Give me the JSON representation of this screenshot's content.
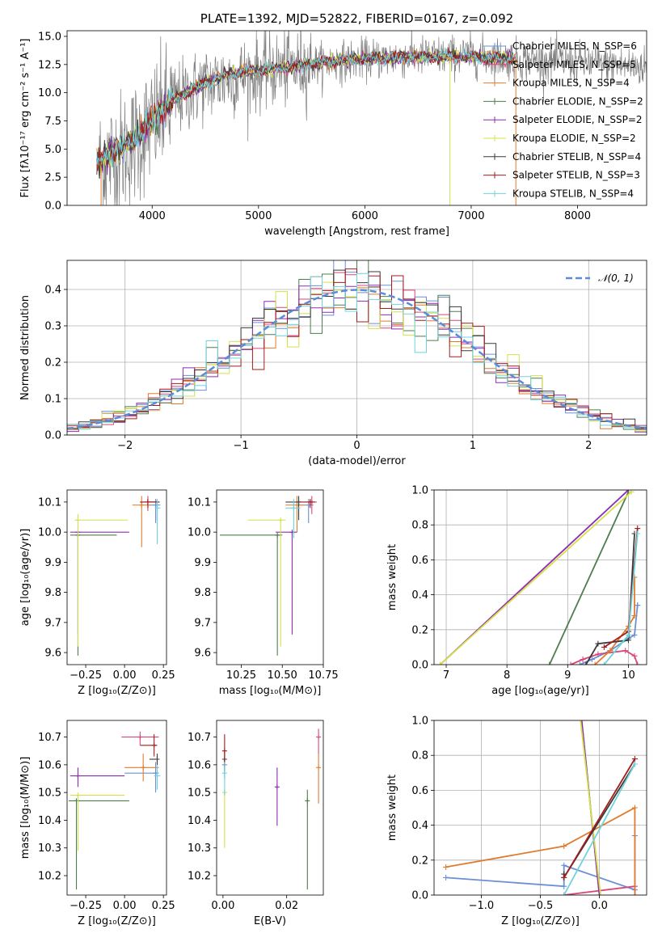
{
  "colors": {
    "chabrier_miles": "#6a8fd8",
    "salpeter_miles": "#d9477a",
    "kroupa_miles": "#e07b2e",
    "chabrier_elodie": "#4e7d4e",
    "salpeter_elodie": "#8e2bb5",
    "kroupa_elodie": "#d4e04a",
    "chabrier_stelib": "#3a3a3a",
    "salpeter_stelib": "#a51c1c",
    "kroupa_stelib": "#6fd3dc",
    "data": "#808080",
    "normal": "#5b8bd9"
  },
  "chart_data": [
    {
      "id": "spectrum",
      "type": "line",
      "title": "PLATE=1392, MJD=52822, FIBERID=0167, z=0.092",
      "xlabel": "wavelength [Angstrom, rest frame]",
      "ylabel": "Flux [fλ10⁻¹⁷ erg cm⁻² s⁻¹ A⁻¹]",
      "xlim": [
        3200,
        8650
      ],
      "ylim": [
        0,
        15.5
      ],
      "xticks": [
        "4000",
        "5000",
        "6000",
        "7000",
        "8000"
      ],
      "yticks": [
        "0.0",
        "2.5",
        "5.0",
        "7.5",
        "10.0",
        "12.5",
        "15.0"
      ],
      "legend": [
        "Chabrier MILES, N_SSP=6",
        "Salpeter MILES, N_SSP=5",
        "Kroupa MILES, N_SSP=4",
        "Chabrier ELODIE, N_SSP=2",
        "Salpeter ELODIE, N_SSP=2",
        "Kroupa ELODIE, N_SSP=2",
        "Chabrier STELIB, N_SSP=4",
        "Salpeter STELIB, N_SSP=3",
        "Kroupa STELIB, N_SSP=4"
      ],
      "legend_position": "right",
      "data_range": [
        3500,
        8650
      ],
      "model_points": [
        [
          3500,
          3.7
        ],
        [
          3600,
          4.8
        ],
        [
          3700,
          5.2
        ],
        [
          3800,
          5.5
        ],
        [
          3900,
          6.5
        ],
        [
          4000,
          7.6
        ],
        [
          4100,
          8.7
        ],
        [
          4200,
          9.4
        ],
        [
          4300,
          9.9
        ],
        [
          4500,
          10.9
        ],
        [
          4700,
          11.6
        ],
        [
          5000,
          12.0
        ],
        [
          5300,
          12.3
        ],
        [
          5600,
          12.7
        ],
        [
          6000,
          13.0
        ],
        [
          6500,
          13.2
        ],
        [
          7000,
          13.2
        ],
        [
          7400,
          13.0
        ]
      ],
      "data_points": [
        [
          3500,
          3.5
        ],
        [
          3800,
          5.2
        ],
        [
          4000,
          7.2
        ],
        [
          4200,
          9.2
        ],
        [
          4500,
          10.8
        ],
        [
          5000,
          11.8
        ],
        [
          5500,
          12.5
        ],
        [
          6000,
          13.0
        ],
        [
          6500,
          13.2
        ],
        [
          7000,
          13.3
        ],
        [
          7500,
          12.9
        ],
        [
          8000,
          12.7
        ],
        [
          8400,
          12.4
        ],
        [
          8650,
          12.3
        ]
      ],
      "grid": false
    },
    {
      "id": "residuals",
      "type": "area",
      "xlabel": "(data-model)/error",
      "ylabel": "Normed distribution",
      "xlim": [
        -2.5,
        2.5
      ],
      "ylim": [
        0,
        0.48
      ],
      "xticks": [
        "−2",
        "−1",
        "0",
        "1",
        "2"
      ],
      "yticks": [
        "0.0",
        "0.1",
        "0.2",
        "0.3",
        "0.4"
      ],
      "legend": [
        "𝒩(0, 1)"
      ],
      "legend_position": "top-right",
      "bin_width": 0.1,
      "grid": true
    },
    {
      "id": "age_vs_Z",
      "type": "scatter",
      "xlabel": "Z [log₁₀(Z/Z⊙)]",
      "ylabel": "age  [log₁₀(age/yr)]",
      "xlim": [
        -0.37,
        0.27
      ],
      "ylim": [
        9.56,
        10.14
      ],
      "xticks": [
        "−0.25",
        "0.00",
        "0.25"
      ],
      "yticks": [
        "9.6",
        "9.7",
        "9.8",
        "9.9",
        "10.0",
        "10.1"
      ],
      "points": [
        {
          "s": "chabrier_miles",
          "x": 0.2,
          "y": 10.09,
          "xerr": [
            0.05,
            0.03
          ],
          "yerr": [
            0.06,
            0.02
          ]
        },
        {
          "s": "salpeter_miles",
          "x": 0.15,
          "y": 10.1,
          "xerr": [
            0.05,
            0.05
          ],
          "yerr": [
            0.03,
            0.02
          ]
        },
        {
          "s": "kroupa_miles",
          "x": 0.11,
          "y": 10.09,
          "xerr": [
            0.06,
            0.06
          ],
          "yerr": [
            0.14,
            0.03
          ]
        },
        {
          "s": "chabrier_elodie",
          "x": -0.3,
          "y": 9.99,
          "xerr": [
            0.05,
            0.25
          ],
          "yerr": [
            0.4,
            0.0
          ]
        },
        {
          "s": "salpeter_elodie",
          "x": -0.3,
          "y": 10.0,
          "xerr": [
            0.05,
            0.33
          ],
          "yerr": [
            0.34,
            0.0
          ]
        },
        {
          "s": "kroupa_elodie",
          "x": -0.3,
          "y": 10.04,
          "xerr": [
            0.02,
            0.32
          ],
          "yerr": [
            0.42,
            0.02
          ]
        },
        {
          "s": "chabrier_stelib",
          "x": 0.21,
          "y": 10.1,
          "xerr": [
            0.06,
            0.0
          ],
          "yerr": [
            0.06,
            0.01
          ]
        },
        {
          "s": "salpeter_stelib",
          "x": 0.15,
          "y": 10.1,
          "xerr": [
            0.05,
            0.07
          ],
          "yerr": [
            0.02,
            0.01
          ]
        },
        {
          "s": "kroupa_stelib",
          "x": 0.21,
          "y": 10.08,
          "xerr": [
            0.0,
            0.02
          ],
          "yerr": [
            0.12,
            0.03
          ]
        }
      ]
    },
    {
      "id": "age_vs_mass",
      "type": "scatter",
      "xlabel": "mass [log₁₀(M/M⊙)]",
      "ylabel": "",
      "xlim": [
        10.1,
        10.75
      ],
      "ylim": [
        9.56,
        10.14
      ],
      "xticks": [
        "10.25",
        "10.50",
        "10.75"
      ],
      "yticks": [
        "9.6",
        "9.7",
        "9.8",
        "9.9",
        "10.0",
        "10.1"
      ],
      "points": [
        {
          "s": "chabrier_miles",
          "x": 10.66,
          "y": 10.09,
          "xerr": [
            0.06,
            0.03
          ],
          "yerr": [
            0.06,
            0.02
          ]
        },
        {
          "s": "salpeter_miles",
          "x": 10.68,
          "y": 10.1,
          "xerr": [
            0.05,
            0.03
          ],
          "yerr": [
            0.04,
            0.02
          ]
        },
        {
          "s": "kroupa_miles",
          "x": 10.59,
          "y": 10.09,
          "xerr": [
            0.07,
            0.05
          ],
          "yerr": [
            0.09,
            0.03
          ]
        },
        {
          "s": "chabrier_elodie",
          "x": 10.47,
          "y": 9.99,
          "xerr": [
            0.35,
            0.03
          ],
          "yerr": [
            0.4,
            0.0
          ]
        },
        {
          "s": "salpeter_elodie",
          "x": 10.56,
          "y": 10.0,
          "xerr": [
            0.1,
            0.03
          ],
          "yerr": [
            0.34,
            0.0
          ]
        },
        {
          "s": "kroupa_elodie",
          "x": 10.49,
          "y": 10.04,
          "xerr": [
            0.2,
            0.03
          ],
          "yerr": [
            0.42,
            0.0
          ]
        },
        {
          "s": "chabrier_stelib",
          "x": 10.6,
          "y": 10.1,
          "xerr": [
            0.08,
            0.02
          ],
          "yerr": [
            0.06,
            0.02
          ]
        },
        {
          "s": "salpeter_stelib",
          "x": 10.67,
          "y": 10.1,
          "xerr": [
            0.06,
            0.03
          ],
          "yerr": [
            0.02,
            0.01
          ]
        },
        {
          "s": "kroupa_stelib",
          "x": 10.57,
          "y": 10.08,
          "xerr": [
            0.05,
            0.04
          ],
          "yerr": [
            0.1,
            0.03
          ]
        }
      ]
    },
    {
      "id": "weight_vs_age",
      "type": "line",
      "xlabel": "age  [log₁₀(age/yr)]",
      "ylabel": "mass weight",
      "xlim": [
        6.8,
        10.3
      ],
      "ylim": [
        0,
        1.0
      ],
      "xticks": [
        "7",
        "8",
        "9",
        "10"
      ],
      "yticks": [
        "0.0",
        "0.2",
        "0.4",
        "0.6",
        "0.8",
        "1.0"
      ],
      "grid": true,
      "series": [
        {
          "s": "chabrier_miles",
          "x": [
            9.2,
            9.4,
            9.7,
            10.0,
            10.1,
            10.15,
            10.15
          ],
          "y": [
            0.0,
            0.03,
            0.08,
            0.15,
            0.17,
            0.34,
            0.34
          ]
        },
        {
          "s": "salpeter_miles",
          "x": [
            9.05,
            9.25,
            9.5,
            9.95,
            10.1,
            10.15
          ],
          "y": [
            0.0,
            0.03,
            0.06,
            0.08,
            0.05,
            0.0
          ]
        },
        {
          "s": "kroupa_miles",
          "x": [
            9.45,
            9.7,
            10.0,
            10.1,
            10.1
          ],
          "y": [
            0.0,
            0.08,
            0.22,
            0.28,
            0.5
          ]
        },
        {
          "s": "chabrier_elodie",
          "x": [
            8.7,
            10.0
          ],
          "y": [
            0.0,
            0.99
          ]
        },
        {
          "s": "salpeter_elodie",
          "x": [
            6.9,
            10.0
          ],
          "y": [
            0.0,
            1.0
          ]
        },
        {
          "s": "kroupa_elodie",
          "x": [
            6.9,
            10.05
          ],
          "y": [
            0.0,
            0.99
          ]
        },
        {
          "s": "chabrier_stelib",
          "x": [
            9.3,
            9.5,
            10.0,
            10.1
          ],
          "y": [
            0.0,
            0.12,
            0.14,
            0.75
          ]
        },
        {
          "s": "salpeter_stelib",
          "x": [
            9.6,
            10.0,
            10.15
          ],
          "y": [
            0.1,
            0.19,
            0.78
          ]
        },
        {
          "s": "kroupa_stelib",
          "x": [
            9.6,
            10.0,
            10.15
          ],
          "y": [
            0.0,
            0.17,
            0.75
          ]
        }
      ]
    },
    {
      "id": "mass_vs_Z",
      "type": "scatter",
      "xlabel": "Z [log₁₀(Z/Z⊙)]",
      "ylabel": "mass [log₁₀(M/M⊙)]",
      "xlim": [
        -0.37,
        0.27
      ],
      "ylim": [
        10.13,
        10.76
      ],
      "xticks": [
        "−0.25",
        "0.00",
        "0.25"
      ],
      "yticks": [
        "10.2",
        "10.3",
        "10.4",
        "10.5",
        "10.6",
        "10.7"
      ],
      "points": [
        {
          "s": "chabrier_miles",
          "x": 0.2,
          "y": 10.57,
          "xerr": [
            0.2,
            0.02
          ],
          "yerr": [
            0.07,
            0.04
          ]
        },
        {
          "s": "salpeter_miles",
          "x": 0.1,
          "y": 10.7,
          "xerr": [
            0.12,
            0.12
          ],
          "yerr": [
            0.03,
            0.02
          ]
        },
        {
          "s": "kroupa_miles",
          "x": 0.12,
          "y": 10.59,
          "xerr": [
            0.12,
            0.1
          ],
          "yerr": [
            0.05,
            0.05
          ]
        },
        {
          "s": "chabrier_elodie",
          "x": -0.31,
          "y": 10.47,
          "xerr": [
            0.05,
            0.34
          ],
          "yerr": [
            0.32,
            0.0
          ]
        },
        {
          "s": "salpeter_elodie",
          "x": -0.3,
          "y": 10.56,
          "xerr": [
            0.05,
            0.3
          ],
          "yerr": [
            0.04,
            0.03
          ]
        },
        {
          "s": "kroupa_elodie",
          "x": -0.3,
          "y": 10.49,
          "xerr": [
            0.05,
            0.3
          ],
          "yerr": [
            0.2,
            0.01
          ]
        },
        {
          "s": "chabrier_stelib",
          "x": 0.21,
          "y": 10.62,
          "xerr": [
            0.05,
            0.0
          ],
          "yerr": [
            0.05,
            0.02
          ]
        },
        {
          "s": "salpeter_stelib",
          "x": 0.19,
          "y": 10.67,
          "xerr": [
            0.09,
            0.02
          ],
          "yerr": [
            0.04,
            0.04
          ]
        },
        {
          "s": "kroupa_stelib",
          "x": 0.21,
          "y": 10.56,
          "xerr": [
            0.02,
            0.02
          ],
          "yerr": [
            0.05,
            0.04
          ]
        }
      ]
    },
    {
      "id": "mass_vs_ebv",
      "type": "scatter",
      "xlabel": "E(B-V)",
      "ylabel": "",
      "xlim": [
        -0.002,
        0.0315
      ],
      "ylim": [
        10.13,
        10.76
      ],
      "xticks": [
        "0.00",
        "0.02"
      ],
      "yticks": [
        "10.2",
        "10.3",
        "10.4",
        "10.5",
        "10.6",
        "10.7"
      ],
      "points": [
        {
          "s": "chabrier_miles",
          "x": 0.0005,
          "y": 10.6,
          "yerr": [
            0.05,
            0.03
          ]
        },
        {
          "s": "salpeter_miles",
          "x": 0.03,
          "y": 10.7,
          "yerr": [
            0.06,
            0.03
          ]
        },
        {
          "s": "kroupa_miles",
          "x": 0.03,
          "y": 10.59,
          "yerr": [
            0.13,
            0.05
          ]
        },
        {
          "s": "chabrier_elodie",
          "x": 0.0265,
          "y": 10.47,
          "yerr": [
            0.32,
            0.04
          ]
        },
        {
          "s": "salpeter_elodie",
          "x": 0.017,
          "y": 10.52,
          "yerr": [
            0.14,
            0.07
          ]
        },
        {
          "s": "kroupa_elodie",
          "x": 0.0005,
          "y": 10.5,
          "yerr": [
            0.2,
            0.01
          ]
        },
        {
          "s": "chabrier_stelib",
          "x": 0.0005,
          "y": 10.62,
          "yerr": [
            0.05,
            0.03
          ]
        },
        {
          "s": "salpeter_stelib",
          "x": 0.0005,
          "y": 10.65,
          "yerr": [
            0.06,
            0.06
          ]
        },
        {
          "s": "kroupa_stelib",
          "x": 0.0005,
          "y": 10.57,
          "yerr": [
            0.08,
            0.04
          ]
        }
      ]
    },
    {
      "id": "weight_vs_Z",
      "type": "line",
      "xlabel": "Z [log₁₀(Z/Z⊙)]",
      "ylabel": "mass weight",
      "xlim": [
        -1.4,
        0.4
      ],
      "ylim": [
        0,
        1.0
      ],
      "xticks": [
        "−1.0",
        "−0.5",
        "0.0"
      ],
      "yticks": [
        "0.0",
        "0.2",
        "0.4",
        "0.6",
        "0.8",
        "1.0"
      ],
      "grid": true,
      "series": [
        {
          "s": "chabrier_miles",
          "x": [
            -1.3,
            -0.3,
            -0.3,
            0.3,
            0.3
          ],
          "y": [
            0.1,
            0.05,
            0.17,
            0.03,
            0.34
          ]
        },
        {
          "s": "salpeter_miles",
          "x": [
            -0.3,
            0.3,
            0.3
          ],
          "y": [
            0.0,
            0.05,
            0.0
          ]
        },
        {
          "s": "kroupa_miles",
          "x": [
            -1.3,
            -0.3,
            0.3,
            0.3
          ],
          "y": [
            0.16,
            0.28,
            0.5,
            0.0
          ]
        },
        {
          "s": "chabrier_elodie",
          "x": [
            -0.15,
            0.0
          ],
          "y": [
            1.0,
            0.0
          ]
        },
        {
          "s": "salpeter_elodie",
          "x": [
            -0.15,
            0.0
          ],
          "y": [
            1.0,
            0.0
          ]
        },
        {
          "s": "kroupa_elodie",
          "x": [
            -0.16,
            0.01
          ],
          "y": [
            1.0,
            0.0
          ]
        },
        {
          "s": "chabrier_stelib",
          "x": [
            -0.3,
            -0.3,
            0.3
          ],
          "y": [
            0.12,
            0.1,
            0.75
          ]
        },
        {
          "s": "salpeter_stelib",
          "x": [
            -0.3,
            0.3
          ],
          "y": [
            0.1,
            0.78
          ]
        },
        {
          "s": "kroupa_stelib",
          "x": [
            -0.3,
            0.3
          ],
          "y": [
            0.0,
            0.75
          ]
        }
      ]
    }
  ]
}
